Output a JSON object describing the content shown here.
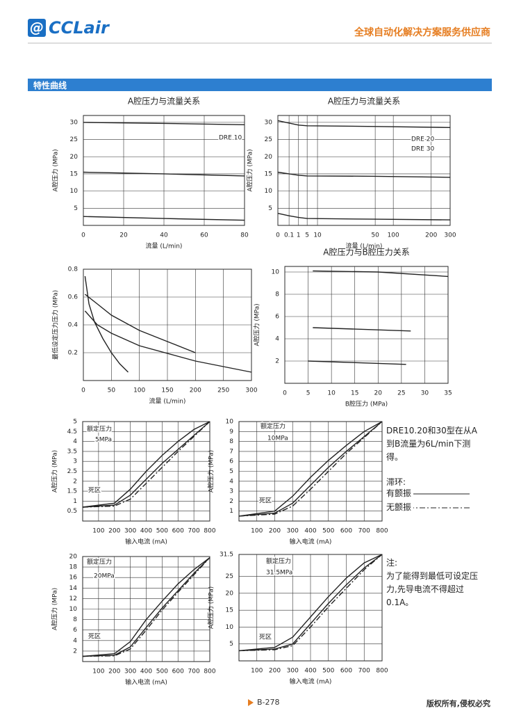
{
  "header": {
    "brand": "CCLair",
    "slogan": "全球自动化解决方案服务供应商"
  },
  "section_title": "特性曲线",
  "chart_data": [
    {
      "type": "line",
      "title": "A腔压力与流量关系",
      "x_label": "流量 (L/min)",
      "y_label": "A腔压力 (MPa)",
      "xlim": [
        0,
        80
      ],
      "xticks": [
        0,
        20,
        40,
        60,
        80
      ],
      "ylim": [
        0,
        32
      ],
      "yticks": [
        5,
        10,
        15,
        20,
        25,
        30
      ],
      "grid": true,
      "annotations": [
        "DRE 10"
      ],
      "series": [
        {
          "color": "#222222",
          "x": [
            0,
            40,
            80
          ],
          "values": [
            30,
            29.7,
            29.3
          ]
        },
        {
          "color": "#222222",
          "x": [
            0,
            40,
            80
          ],
          "values": [
            15.5,
            15,
            14.4
          ]
        },
        {
          "color": "#222222",
          "x": [
            0,
            40,
            80
          ],
          "values": [
            2.6,
            2,
            1.5
          ]
        }
      ]
    },
    {
      "type": "line",
      "title": "A腔压力与流量关系",
      "x_label": "流量 (L/min)",
      "y_label": "A腔压力 (MPa)",
      "xscale": "nonuniform",
      "xlim": [
        0,
        300
      ],
      "xticks": [
        0,
        0.1,
        1,
        5,
        10,
        50,
        100,
        200,
        300
      ],
      "ylim": [
        0,
        32
      ],
      "yticks": [
        5,
        10,
        15,
        20,
        25,
        30
      ],
      "grid": true,
      "annotations": [
        "DRE 20",
        "DRE 30"
      ],
      "series": [
        {
          "color": "#222222",
          "x": [
            0,
            0.1,
            1,
            5,
            50,
            300
          ],
          "values": [
            30.5,
            29.8,
            29.2,
            29,
            28.8,
            28.5
          ]
        },
        {
          "color": "#222222",
          "x": [
            0,
            0.1,
            1,
            5,
            50,
            300
          ],
          "values": [
            15.5,
            15,
            14.6,
            14.4,
            14.3,
            14
          ]
        },
        {
          "color": "#222222",
          "x": [
            0,
            0.1,
            1,
            5,
            50,
            300
          ],
          "values": [
            3.5,
            2.8,
            2.3,
            2,
            1.8,
            1.6
          ]
        }
      ]
    },
    {
      "type": "line",
      "x_label": "流量 (L/min)",
      "y_label": "最低设定压力压力 (MPa)",
      "xlim": [
        0,
        300
      ],
      "xticks": [
        0,
        50,
        100,
        150,
        200,
        250,
        300
      ],
      "ylim": [
        0,
        0.8
      ],
      "yticks": [
        0.2,
        0.4,
        0.6,
        0.8
      ],
      "grid": true,
      "annotations": [],
      "series": [
        {
          "color": "#222222",
          "x": [
            3,
            10,
            20,
            35,
            50,
            65,
            80
          ],
          "values": [
            0.75,
            0.55,
            0.42,
            0.3,
            0.2,
            0.12,
            0.06
          ]
        },
        {
          "color": "#222222",
          "x": [
            3,
            25,
            50,
            100,
            150,
            200
          ],
          "values": [
            0.62,
            0.55,
            0.47,
            0.36,
            0.28,
            0.2
          ]
        },
        {
          "color": "#222222",
          "x": [
            3,
            25,
            50,
            100,
            200,
            300
          ],
          "values": [
            0.5,
            0.4,
            0.34,
            0.25,
            0.14,
            0.06
          ]
        }
      ]
    },
    {
      "type": "line",
      "title": "A腔压力与B腔压力关系",
      "x_label": "B腔压力 (MPa)",
      "y_label": "A腔压力 (MPa)",
      "xlim": [
        0,
        35
      ],
      "xticks": [
        0,
        5,
        10,
        15,
        20,
        25,
        30,
        35
      ],
      "ylim": [
        0,
        10.5
      ],
      "yticks": [
        2,
        4,
        6,
        8,
        10
      ],
      "grid": true,
      "annotations": [],
      "series": [
        {
          "color": "#222222",
          "x": [
            6,
            20,
            35
          ],
          "values": [
            10.1,
            10,
            9.6
          ]
        },
        {
          "color": "#222222",
          "x": [
            6,
            27
          ],
          "values": [
            5,
            4.7
          ]
        },
        {
          "color": "#222222",
          "x": [
            5,
            26
          ],
          "values": [
            2,
            1.7
          ]
        }
      ]
    },
    {
      "type": "line",
      "x_label": "输入电流 (mA)",
      "y_label": "A腔压力 (MPa)",
      "xlim": [
        0,
        800
      ],
      "xticks": [
        100,
        200,
        300,
        400,
        500,
        600,
        700,
        800
      ],
      "ylim": [
        0,
        5
      ],
      "yticks": [
        0.5,
        1,
        1.5,
        2,
        2.5,
        3,
        3.5,
        4,
        4.5,
        5
      ],
      "grid": true,
      "annotations": [
        "额定压力",
        "5MPa",
        "死区"
      ],
      "series": [
        {
          "color": "#222222",
          "style": "solid",
          "x": [
            0,
            200,
            300,
            400,
            500,
            600,
            700,
            800
          ],
          "values": [
            0.7,
            0.8,
            1.3,
            2.1,
            2.9,
            3.6,
            4.3,
            5
          ]
        },
        {
          "color": "#222222",
          "style": "solid",
          "x": [
            0,
            200,
            300,
            400,
            500,
            600,
            700,
            800
          ],
          "values": [
            0.7,
            0.9,
            1.6,
            2.5,
            3.3,
            4,
            4.6,
            5
          ]
        },
        {
          "color": "#222222",
          "style": "dashdot",
          "x": [
            0,
            200,
            300,
            400,
            500,
            600,
            700,
            800
          ],
          "values": [
            0.7,
            0.75,
            1.1,
            1.9,
            2.7,
            3.5,
            4.25,
            5
          ]
        }
      ]
    },
    {
      "type": "line",
      "x_label": "输入电流 (mA)",
      "y_label": "A腔压力 (MPa)",
      "xlim": [
        0,
        800
      ],
      "xticks": [
        100,
        200,
        300,
        400,
        500,
        600,
        700,
        800
      ],
      "ylim": [
        0,
        10
      ],
      "yticks": [
        1,
        2,
        3,
        4,
        5,
        6,
        7,
        8,
        9,
        10
      ],
      "grid": true,
      "annotations": [
        "额定压力",
        "10MPa",
        "死区"
      ],
      "series": [
        {
          "color": "#222222",
          "style": "solid",
          "x": [
            0,
            200,
            300,
            400,
            500,
            600,
            700,
            800
          ],
          "values": [
            0.5,
            0.8,
            1.8,
            3.6,
            5.4,
            7,
            8.5,
            10
          ]
        },
        {
          "color": "#222222",
          "style": "solid",
          "x": [
            0,
            200,
            300,
            400,
            500,
            600,
            700,
            800
          ],
          "values": [
            0.5,
            1,
            2.5,
            4.4,
            6.1,
            7.6,
            9,
            10
          ]
        },
        {
          "color": "#222222",
          "style": "dashdot",
          "x": [
            0,
            200,
            300,
            400,
            500,
            600,
            700,
            800
          ],
          "values": [
            0.5,
            0.7,
            1.5,
            3.2,
            5,
            6.8,
            8.4,
            10
          ]
        }
      ]
    },
    {
      "type": "line",
      "x_label": "输入电流 (mA)",
      "y_label": "A腔压力 (MPa)",
      "xlim": [
        0,
        800
      ],
      "xticks": [
        100,
        200,
        300,
        400,
        500,
        600,
        700,
        800
      ],
      "ylim": [
        0,
        20
      ],
      "yticks": [
        2,
        4,
        6,
        8,
        10,
        12,
        14,
        16,
        18,
        20
      ],
      "grid": true,
      "annotations": [
        "额定压力",
        "20MPa",
        "死区"
      ],
      "series": [
        {
          "color": "#222222",
          "style": "solid",
          "x": [
            0,
            200,
            300,
            400,
            500,
            600,
            700,
            800
          ],
          "values": [
            1,
            1.2,
            2.8,
            6.5,
            10.2,
            13.5,
            16.8,
            19.8
          ]
        },
        {
          "color": "#222222",
          "style": "solid",
          "x": [
            0,
            200,
            300,
            400,
            500,
            600,
            700,
            800
          ],
          "values": [
            1,
            1.5,
            3.8,
            8,
            11.5,
            14.8,
            17.5,
            19.8
          ]
        },
        {
          "color": "#222222",
          "style": "dashdot",
          "x": [
            0,
            200,
            300,
            400,
            500,
            600,
            700,
            800
          ],
          "values": [
            1,
            1.1,
            2.4,
            6,
            9.8,
            13.2,
            16.5,
            19.8
          ]
        }
      ]
    },
    {
      "type": "line",
      "x_label": "输入电流 (mA)",
      "y_label": "A腔压力 (MPa)",
      "xlim": [
        0,
        800
      ],
      "xticks": [
        100,
        200,
        300,
        400,
        500,
        600,
        700,
        800
      ],
      "ylim": [
        0,
        31.5
      ],
      "yticks": [
        5,
        10,
        15,
        20,
        25,
        31.5
      ],
      "grid": true,
      "annotations": [
        "额定压力",
        "31.5MPa",
        "死区"
      ],
      "series": [
        {
          "color": "#222222",
          "style": "solid",
          "x": [
            0,
            200,
            300,
            400,
            500,
            600,
            700,
            800
          ],
          "values": [
            3,
            3.5,
            5,
            11,
            17,
            22.5,
            27.5,
            31.5
          ]
        },
        {
          "color": "#222222",
          "style": "solid",
          "x": [
            0,
            200,
            300,
            400,
            500,
            600,
            700,
            800
          ],
          "values": [
            3,
            4,
            7,
            13,
            19,
            24.5,
            29,
            31.5
          ]
        },
        {
          "color": "#222222",
          "style": "dashdot",
          "x": [
            0,
            200,
            300,
            400,
            500,
            600,
            700,
            800
          ],
          "values": [
            3,
            3.3,
            4.5,
            10,
            16,
            21.5,
            27,
            31.5
          ]
        }
      ]
    }
  ],
  "notes": {
    "measure": "DRE10.20和30型在从A到B流量为6L/min下测得。",
    "hysteresis": "滞环:",
    "with_dither": "有颤振",
    "without_dither": "无颤振",
    "note_title": "注:",
    "note_text": "为了能得到最低可设定压力,先导电流不得超过0.1A。"
  },
  "footer": {
    "page": "B-278",
    "copyright": "版权所有,侵权必究"
  }
}
